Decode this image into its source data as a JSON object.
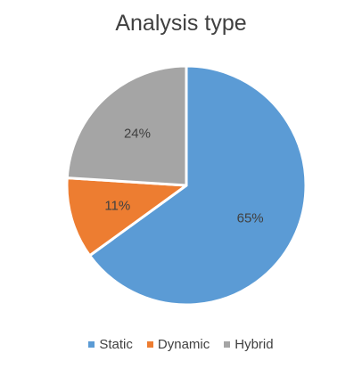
{
  "chart_data": {
    "type": "pie",
    "title": "Analysis type",
    "categories": [
      "Static",
      "Dynamic",
      "Hybrid"
    ],
    "values": [
      65,
      11,
      24
    ],
    "labels": [
      "65%",
      "11%",
      "24%"
    ],
    "colors": [
      "#5b9bd5",
      "#ed7d31",
      "#a5a5a5"
    ],
    "legend_position": "bottom",
    "start_angle": "12 o'clock, clockwise"
  }
}
